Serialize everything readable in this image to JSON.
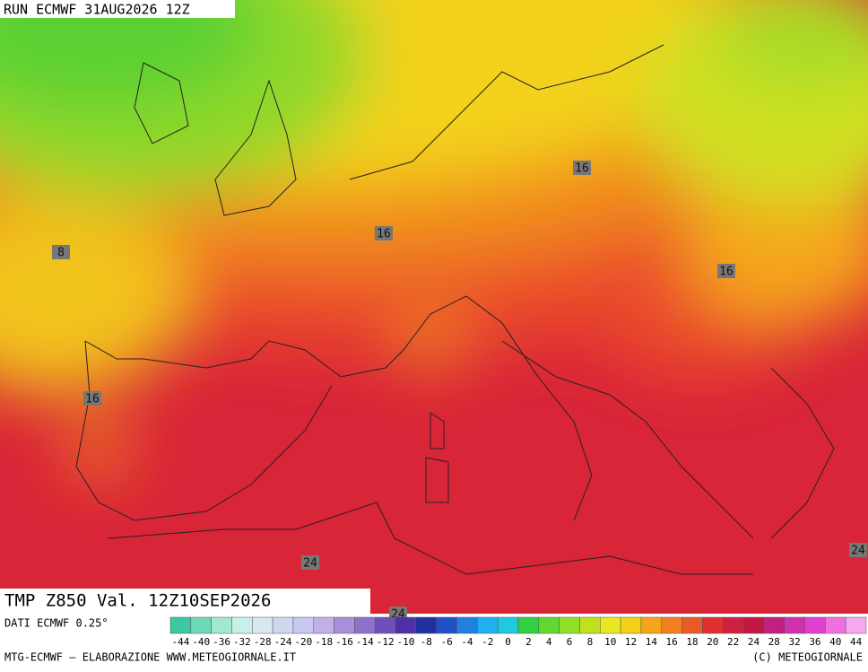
{
  "header": {
    "run": "RUN ECMWF 31AUG2026 12Z"
  },
  "map": {
    "title": "TMP Z850 Val. 12Z10SEP2026",
    "contour_labels": [
      16,
      16,
      16,
      16,
      8,
      24,
      24,
      24
    ]
  },
  "legend": {
    "source": "DATI ECMWF 0.25°",
    "scale": [
      -44,
      -40,
      -36,
      -32,
      -28,
      -24,
      -20,
      -18,
      -16,
      -14,
      -12,
      -10,
      -8,
      -6,
      -4,
      -2,
      0,
      2,
      4,
      6,
      8,
      10,
      12,
      14,
      16,
      18,
      20,
      22,
      24,
      28,
      32,
      36,
      40,
      44
    ]
  },
  "footer": {
    "left": "MTG-ECMWF – ELABORAZIONE WWW.METEOGIORNALE.IT",
    "right": "(C) METEOGIORNALE"
  }
}
